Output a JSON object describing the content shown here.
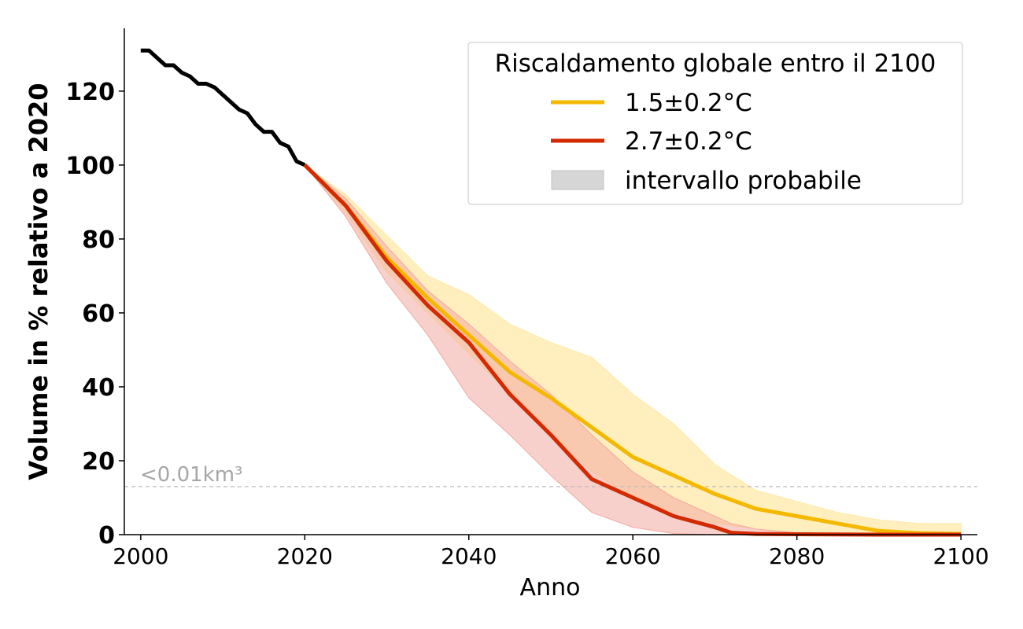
{
  "chart_data": {
    "type": "line",
    "xlabel": "Anno",
    "ylabel": "Volume in % relativo a 2020",
    "xlim": [
      1998,
      2102
    ],
    "ylim": [
      0,
      137
    ],
    "xticks": [
      2000,
      2020,
      2040,
      2060,
      2080,
      2100
    ],
    "yticks": [
      0,
      20,
      40,
      60,
      80,
      100,
      120
    ],
    "grid": false,
    "reference_line": {
      "y": 13,
      "label": "<0.01km³",
      "color": "#bbbbbb"
    },
    "legend": {
      "title": "Riscaldamento globale entro il 2100",
      "placement": "top-right",
      "entries": [
        "1.5±0.2°C",
        "2.7±0.2°C",
        "intervallo probabile"
      ]
    },
    "series": [
      {
        "name": "",
        "color": "#000000",
        "x": [
          2000,
          2001,
          2002,
          2003,
          2004,
          2005,
          2006,
          2007,
          2008,
          2009,
          2010,
          2011,
          2012,
          2013,
          2014,
          2015,
          2016,
          2017,
          2018,
          2019,
          2020
        ],
        "y": [
          131,
          131,
          129,
          127,
          127,
          125,
          124,
          122,
          122,
          121,
          119,
          117,
          115,
          114,
          111,
          109,
          109,
          106,
          105,
          101,
          100
        ]
      },
      {
        "name": "1.5±0.2°C",
        "color": "#f5b800",
        "band_color": "#ffeaaa",
        "x": [
          2020,
          2025,
          2030,
          2035,
          2040,
          2045,
          2050,
          2055,
          2060,
          2065,
          2070,
          2075,
          2080,
          2085,
          2090,
          2095,
          2100
        ],
        "y": [
          100,
          89,
          75,
          64,
          54,
          44,
          37,
          29,
          21,
          16,
          11,
          7,
          5,
          3,
          1,
          0.4,
          0.2
        ],
        "lower": [
          100,
          87,
          71,
          60,
          49,
          38,
          27,
          17,
          10,
          6,
          3,
          1.5,
          0.8,
          0.3,
          0.1,
          0,
          0
        ],
        "upper": [
          100,
          92,
          81,
          70,
          65,
          57,
          52,
          48,
          38,
          30,
          19,
          12,
          9,
          6,
          4,
          3,
          3
        ]
      },
      {
        "name": "2.7±0.2°C",
        "color": "#d42a00",
        "band_color": "#f2aaa0",
        "x": [
          2020,
          2025,
          2030,
          2035,
          2040,
          2045,
          2050,
          2055,
          2060,
          2065,
          2070,
          2072,
          2075,
          2080,
          2090,
          2100
        ],
        "y": [
          100,
          89,
          74,
          62,
          52,
          38,
          27,
          15,
          10,
          5,
          2,
          0.5,
          0.2,
          0.1,
          0,
          0
        ],
        "lower": [
          100,
          86,
          68,
          54,
          37,
          27,
          16,
          6,
          2,
          0.3,
          0,
          0,
          0,
          0,
          0,
          0
        ],
        "upper": [
          100,
          91,
          78,
          66,
          57,
          47,
          38,
          27,
          17,
          10,
          5,
          3,
          1.5,
          0.5,
          0.2,
          0.1
        ]
      }
    ]
  }
}
